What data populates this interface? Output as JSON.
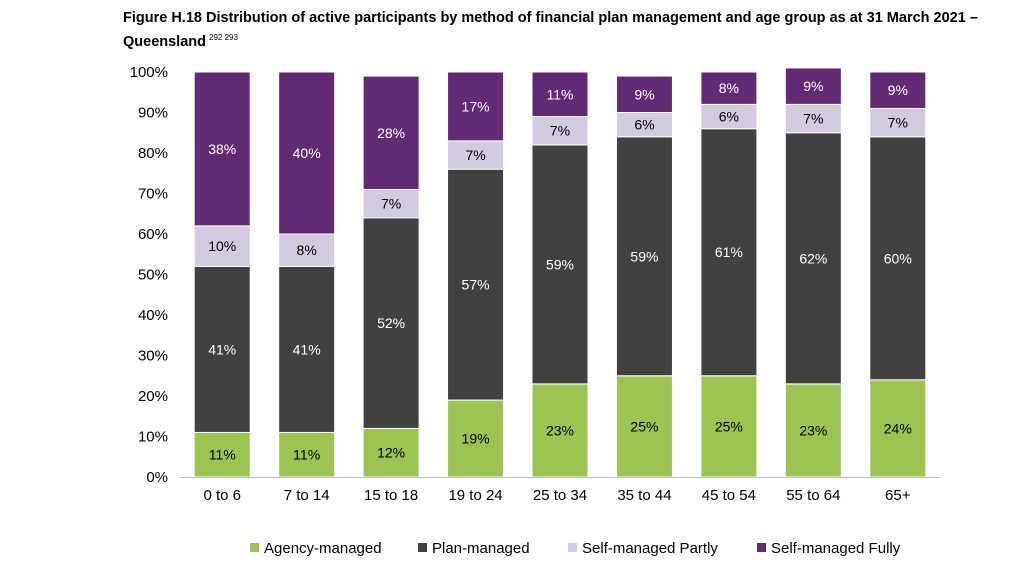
{
  "title": {
    "text": "Figure H.18 Distribution of active participants by method of financial plan management and age group as at 31 March 2021 – Queensland",
    "footnote": "292 293"
  },
  "colors": {
    "Agency-managed": "#9dc453",
    "Plan-managed": "#414141",
    "Self-managed Partly": "#d4cadd",
    "Self-managed Fully": "#612a73"
  },
  "chart_data": {
    "type": "bar",
    "stacked": true,
    "percent": true,
    "categories": [
      "0 to 6",
      "7 to 14",
      "15 to 18",
      "19 to 24",
      "25 to 34",
      "35 to 44",
      "45 to 54",
      "55 to 64",
      "65+"
    ],
    "series": [
      {
        "name": "Agency-managed",
        "values": [
          11,
          11,
          12,
          19,
          23,
          25,
          25,
          23,
          24
        ]
      },
      {
        "name": "Plan-managed",
        "values": [
          41,
          41,
          52,
          57,
          59,
          59,
          61,
          62,
          60
        ]
      },
      {
        "name": "Self-managed Partly",
        "values": [
          10,
          8,
          7,
          7,
          7,
          6,
          6,
          7,
          7
        ]
      },
      {
        "name": "Self-managed Fully",
        "values": [
          38,
          40,
          28,
          17,
          11,
          9,
          8,
          9,
          9
        ]
      }
    ],
    "data_labels": [
      [
        "11%",
        "11%",
        "12%",
        "19%",
        "23%",
        "25%",
        "25%",
        "23%",
        "24%"
      ],
      [
        "41%",
        "41%",
        "52%",
        "57%",
        "59%",
        "59%",
        "61%",
        "62%",
        "60%"
      ],
      [
        "10%",
        "8%",
        "7%",
        "7%",
        "7%",
        "6%",
        "6%",
        "7%",
        "7%"
      ],
      [
        "38%",
        "40%",
        "28%",
        "17%",
        "11%",
        "9%",
        "8%",
        "9%",
        "9%"
      ]
    ],
    "ylim": [
      0,
      100
    ],
    "yticks": [
      "0%",
      "10%",
      "20%",
      "30%",
      "40%",
      "50%",
      "60%",
      "70%",
      "80%",
      "90%",
      "100%"
    ],
    "grid": false,
    "legend_position": "bottom"
  }
}
